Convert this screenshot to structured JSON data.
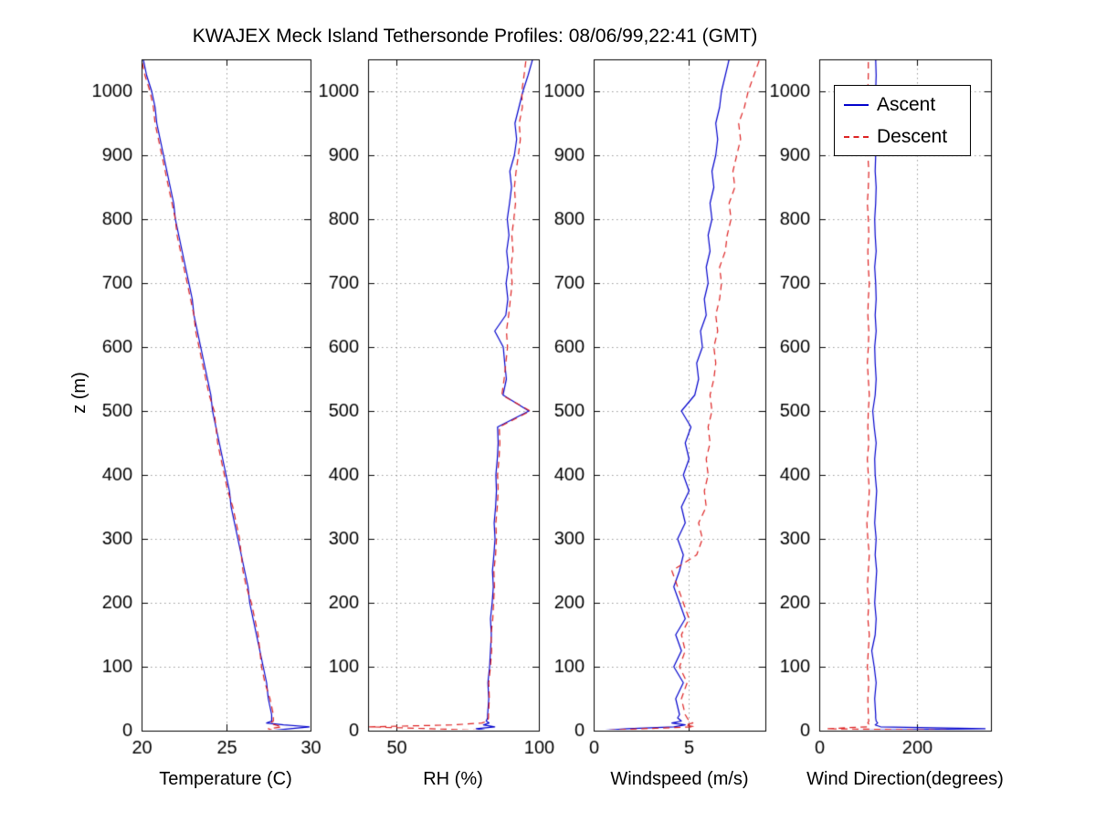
{
  "title": "KWAJEX Meck Island Tethersonde Profiles: 08/06/99,22:41 (GMT)",
  "ylabel": "z (m)",
  "colors": {
    "ascent": "#0000cc",
    "descent": "#dd2222",
    "grid": "#999999",
    "frame": "#000000"
  },
  "legend": {
    "entries": [
      {
        "label": "Ascent",
        "color": "#0000cc",
        "style": "solid"
      },
      {
        "label": "Descent",
        "color": "#dd2222",
        "style": "dashed"
      }
    ]
  },
  "chart_data": [
    {
      "type": "line",
      "xlabel": "Temperature (C)",
      "xlim": [
        20,
        30
      ],
      "xticks": [
        20,
        25,
        30
      ],
      "ylim": [
        0,
        1050
      ],
      "yticks": [
        0,
        100,
        200,
        300,
        400,
        500,
        600,
        700,
        800,
        900,
        1000
      ],
      "grid": true,
      "z": [
        0,
        3,
        6,
        9,
        12,
        15,
        20,
        25,
        50,
        75,
        100,
        125,
        150,
        175,
        200,
        225,
        250,
        275,
        300,
        325,
        350,
        375,
        400,
        425,
        450,
        475,
        500,
        525,
        550,
        575,
        600,
        625,
        650,
        675,
        700,
        725,
        750,
        775,
        800,
        825,
        850,
        875,
        900,
        925,
        950,
        975,
        1000,
        1025,
        1050
      ],
      "series": [
        {
          "name": "Ascent",
          "color": "#0000cc",
          "style": "solid",
          "values": [
            27.6,
            28.8,
            30.0,
            28.4,
            27.4,
            27.7,
            27.7,
            27.7,
            27.5,
            27.4,
            27.2,
            27.0,
            26.8,
            26.6,
            26.4,
            26.3,
            26.1,
            25.9,
            25.7,
            25.5,
            25.3,
            25.2,
            25.0,
            24.8,
            24.6,
            24.4,
            24.2,
            24.1,
            23.9,
            23.7,
            23.5,
            23.3,
            23.1,
            23.0,
            22.8,
            22.6,
            22.4,
            22.2,
            22.0,
            21.9,
            21.7,
            21.5,
            21.3,
            21.1,
            20.9,
            20.8,
            20.6,
            20.3,
            20.1
          ]
        },
        {
          "name": "Descent",
          "color": "#dd2222",
          "style": "dashed",
          "values": [
            27.8,
            27.5,
            28.3,
            27.9,
            27.6,
            27.8,
            27.8,
            27.8,
            27.6,
            27.3,
            27.1,
            27.0,
            26.9,
            26.7,
            26.5,
            26.2,
            26.0,
            25.9,
            25.8,
            25.6,
            25.4,
            25.1,
            24.9,
            24.7,
            24.5,
            24.4,
            24.3,
            24.0,
            23.8,
            23.6,
            23.4,
            23.2,
            23.1,
            22.9,
            22.7,
            22.5,
            22.3,
            22.1,
            22.0,
            21.8,
            21.6,
            21.4,
            21.2,
            21.0,
            20.8,
            20.7,
            20.5,
            20.2,
            20.0
          ]
        }
      ]
    },
    {
      "type": "line",
      "xlabel": "RH (%)",
      "xlim": [
        40,
        100
      ],
      "xticks": [
        50,
        100
      ],
      "ylim": [
        0,
        1050
      ],
      "yticks": [
        0,
        100,
        200,
        300,
        400,
        500,
        600,
        700,
        800,
        900,
        1000
      ],
      "grid": true,
      "z": [
        0,
        3,
        6,
        9,
        12,
        15,
        20,
        25,
        50,
        75,
        100,
        125,
        150,
        175,
        200,
        225,
        250,
        275,
        300,
        325,
        350,
        375,
        400,
        425,
        450,
        475,
        500,
        525,
        550,
        575,
        600,
        625,
        650,
        675,
        700,
        725,
        750,
        775,
        800,
        825,
        850,
        875,
        900,
        925,
        950,
        975,
        1000,
        1025,
        1050
      ],
      "series": [
        {
          "name": "Ascent",
          "color": "#0000cc",
          "style": "solid",
          "values": [
            82.0,
            78.0,
            84.5,
            80.5,
            82.5,
            81.5,
            82.0,
            82.0,
            82.4,
            82.1,
            82.7,
            83.0,
            83.3,
            83.0,
            83.6,
            84.0,
            83.7,
            84.2,
            84.6,
            84.3,
            84.8,
            85.1,
            84.9,
            85.4,
            85.7,
            85.5,
            96.5,
            87.4,
            88.6,
            88.0,
            87.5,
            84.5,
            88.4,
            89.1,
            88.5,
            89.3,
            88.7,
            89.5,
            88.9,
            89.7,
            90.4,
            89.8,
            91.4,
            92.2,
            91.6,
            93.0,
            94.4,
            96.2,
            97.8
          ]
        },
        {
          "name": "Descent",
          "color": "#dd2222",
          "style": "dashed",
          "values": [
            83.0,
            62.0,
            40.5,
            70.0,
            80.0,
            82.0,
            82.3,
            82.3,
            82.6,
            82.4,
            83.0,
            83.4,
            83.2,
            83.8,
            84.1,
            84.4,
            84.2,
            84.8,
            85.1,
            84.9,
            85.4,
            85.7,
            85.5,
            86.0,
            86.3,
            86.1,
            97.0,
            87.0,
            87.8,
            88.4,
            89.0,
            88.6,
            89.4,
            90.0,
            90.6,
            90.2,
            90.9,
            90.5,
            91.2,
            91.8,
            91.4,
            92.0,
            92.8,
            93.5,
            93.1,
            94.2,
            94.0,
            94.8,
            95.5
          ]
        }
      ]
    },
    {
      "type": "line",
      "xlabel": "Windspeed (m/s)",
      "xlim": [
        0,
        9
      ],
      "xticks": [
        0,
        5
      ],
      "ylim": [
        0,
        1050
      ],
      "yticks": [
        0,
        100,
        200,
        300,
        400,
        500,
        600,
        700,
        800,
        900,
        1000
      ],
      "grid": true,
      "z": [
        0,
        3,
        6,
        9,
        12,
        15,
        20,
        25,
        50,
        75,
        100,
        125,
        150,
        175,
        200,
        225,
        250,
        275,
        300,
        325,
        350,
        375,
        400,
        425,
        450,
        475,
        500,
        525,
        550,
        575,
        600,
        625,
        650,
        675,
        700,
        725,
        750,
        775,
        800,
        825,
        850,
        875,
        900,
        925,
        950,
        975,
        1000,
        1025,
        1050
      ],
      "series": [
        {
          "name": "Ascent",
          "color": "#0000cc",
          "style": "solid",
          "values": [
            0.3,
            1.8,
            4.2,
            4.8,
            4.1,
            4.6,
            4.4,
            4.5,
            4.3,
            4.7,
            4.2,
            4.6,
            4.3,
            4.8,
            4.5,
            4.2,
            4.5,
            4.7,
            4.4,
            4.8,
            4.6,
            5.0,
            4.7,
            5.0,
            4.8,
            5.1,
            4.6,
            5.3,
            5.5,
            5.4,
            5.7,
            5.6,
            5.9,
            5.8,
            6.0,
            5.9,
            6.1,
            6.0,
            6.2,
            6.1,
            6.3,
            6.2,
            6.4,
            6.5,
            6.4,
            6.6,
            6.7,
            6.9,
            7.1
          ]
        },
        {
          "name": "Descent",
          "color": "#dd2222",
          "style": "dashed",
          "values": [
            0.2,
            2.6,
            5.3,
            4.8,
            5.2,
            5.0,
            4.9,
            4.8,
            4.6,
            4.9,
            4.5,
            4.8,
            4.6,
            5.0,
            4.7,
            4.4,
            4.1,
            5.4,
            5.7,
            5.5,
            5.9,
            5.8,
            6.0,
            5.9,
            6.1,
            6.0,
            6.2,
            6.1,
            6.3,
            6.4,
            6.3,
            6.5,
            6.4,
            6.6,
            6.7,
            6.6,
            6.9,
            7.0,
            7.2,
            7.1,
            7.4,
            7.3,
            7.5,
            7.7,
            7.6,
            7.9,
            8.1,
            8.4,
            8.7
          ]
        }
      ]
    },
    {
      "type": "line",
      "xlabel": "Wind Direction(degrees)",
      "xlim": [
        0,
        350
      ],
      "xticks": [
        0,
        200
      ],
      "ylim": [
        0,
        1050
      ],
      "yticks": [
        0,
        100,
        200,
        300,
        400,
        500,
        600,
        700,
        800,
        900,
        1000
      ],
      "grid": true,
      "z": [
        0,
        3,
        6,
        9,
        12,
        15,
        20,
        25,
        50,
        75,
        100,
        125,
        150,
        175,
        200,
        225,
        250,
        275,
        300,
        325,
        350,
        375,
        400,
        425,
        450,
        475,
        500,
        525,
        550,
        575,
        600,
        625,
        650,
        675,
        700,
        725,
        750,
        775,
        800,
        825,
        850,
        875,
        900,
        925,
        950,
        975,
        1000,
        1025,
        1050
      ],
      "series": [
        {
          "name": "Ascent",
          "color": "#0000cc",
          "style": "solid",
          "values": [
            8,
            338,
            125,
            114,
            119,
            116,
            115,
            115,
            113,
            116,
            112,
            107,
            114,
            116,
            113,
            115,
            117,
            114,
            116,
            113,
            115,
            117,
            114,
            113,
            116,
            112,
            109,
            114,
            116,
            114,
            113,
            116,
            114,
            116,
            115,
            113,
            116,
            114,
            113,
            115,
            116,
            114,
            115,
            116,
            114,
            113,
            115,
            116,
            115
          ]
        },
        {
          "name": "Descent",
          "color": "#dd2222",
          "style": "dashed",
          "values": [
            348,
            15,
            98,
            103,
            99,
            101,
            100,
            100,
            99,
            101,
            98,
            100,
            102,
            99,
            101,
            98,
            100,
            102,
            99,
            97,
            100,
            102,
            100,
            98,
            101,
            99,
            100,
            102,
            100,
            98,
            100,
            101,
            99,
            100,
            102,
            100,
            99,
            101,
            100,
            98,
            100,
            101,
            99,
            100,
            101,
            100,
            99,
            100,
            100
          ]
        }
      ]
    }
  ]
}
